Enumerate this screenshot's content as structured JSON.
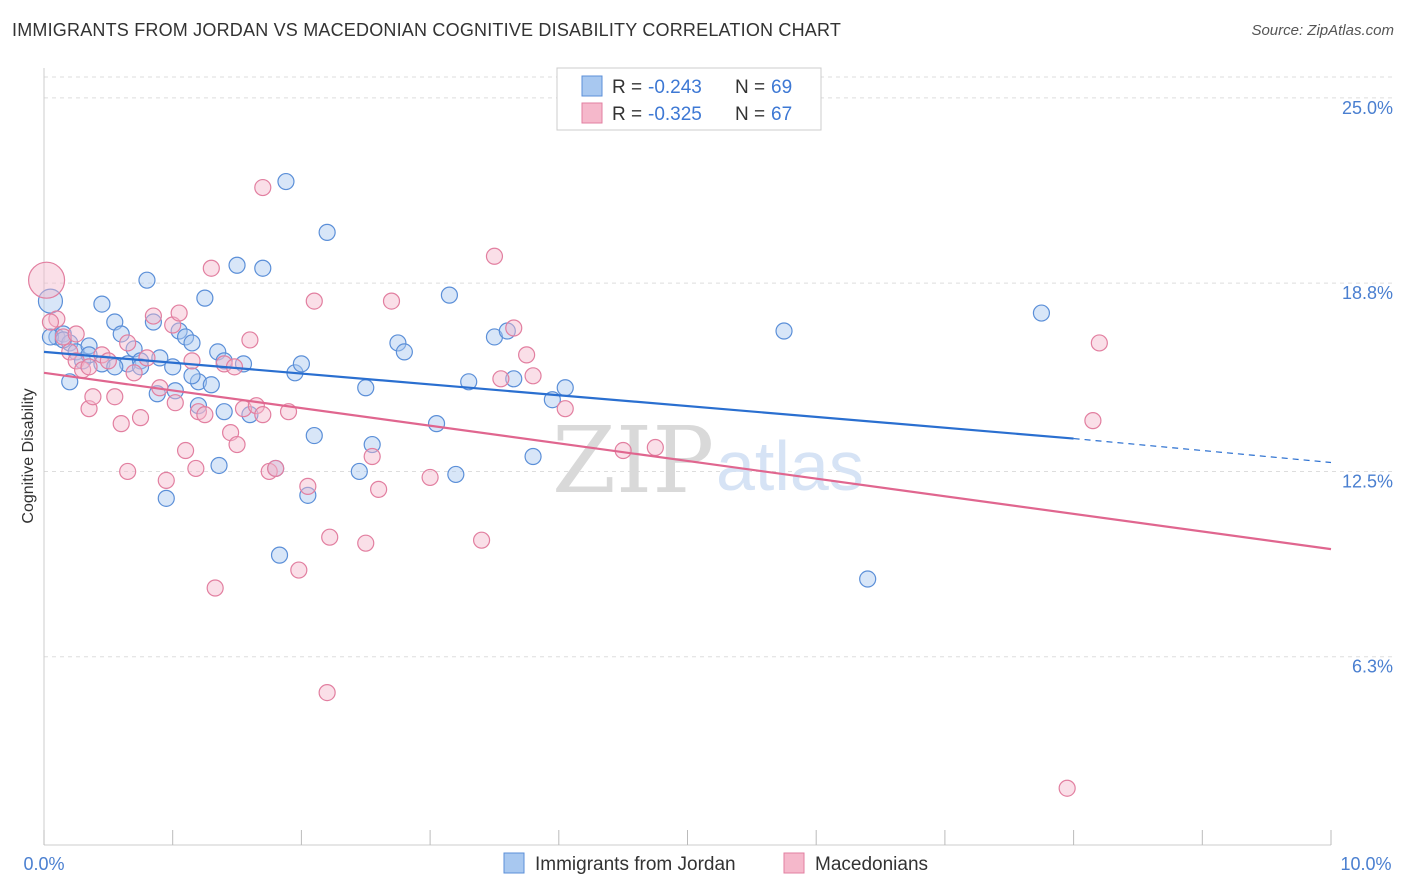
{
  "header": {
    "title": "IMMIGRANTS FROM JORDAN VS MACEDONIAN COGNITIVE DISABILITY CORRELATION CHART",
    "source": "Source: ZipAtlas.com"
  },
  "legend": {
    "rows": [
      {
        "r_label": "R =",
        "r_value": "-0.243",
        "n_label": "N =",
        "n_value": "69"
      },
      {
        "r_label": "R =",
        "r_value": "-0.325",
        "n_label": "N =",
        "n_value": "67"
      }
    ]
  },
  "bottom_legend": {
    "items": [
      {
        "label": "Immigrants from Jordan"
      },
      {
        "label": "Macedonians"
      }
    ]
  },
  "watermark": {
    "zip": "ZIP",
    "atlas": "atlas"
  },
  "colors": {
    "blue_fill": "#a8c8f0",
    "blue_stroke": "#5b8fd8",
    "blue_line": "#2a6fd0",
    "pink_fill": "#f5b8cb",
    "pink_stroke": "#e27fa0",
    "pink_line": "#e0668f",
    "grid": "#dddddd",
    "tick_text": "#4a7fd0"
  },
  "chart_data": {
    "type": "scatter",
    "title": "IMMIGRANTS FROM JORDAN VS MACEDONIAN COGNITIVE DISABILITY CORRELATION CHART",
    "xlabel": "",
    "ylabel": "Cognitive Disability",
    "xlim": [
      0.0,
      10.0
    ],
    "ylim": [
      0.0,
      26.0
    ],
    "x_tick_labels": [
      "0.0%",
      "10.0%"
    ],
    "y_ticks": [
      {
        "value": 6.3,
        "label": "6.3%"
      },
      {
        "value": 12.5,
        "label": "12.5%"
      },
      {
        "value": 18.8,
        "label": "18.8%"
      },
      {
        "value": 25.0,
        "label": "25.0%"
      }
    ],
    "grid": "horizontal dashed",
    "legend_position": "top-center",
    "series": [
      {
        "name": "Immigrants from Jordan",
        "color": "#5b8fd8",
        "R": -0.243,
        "N": 69,
        "trend": {
          "x0": 0.0,
          "y0": 16.5,
          "x1": 8.0,
          "y1": 13.6,
          "dashed_to_x": 10.0,
          "dashed_to_y": 12.8
        },
        "points": [
          [
            0.05,
            18.2
          ],
          [
            0.1,
            17.0
          ],
          [
            0.15,
            17.1
          ],
          [
            0.2,
            16.8
          ],
          [
            0.25,
            16.5
          ],
          [
            0.3,
            16.2
          ],
          [
            0.35,
            16.7
          ],
          [
            0.2,
            15.5
          ],
          [
            0.45,
            18.1
          ],
          [
            0.55,
            17.5
          ],
          [
            0.6,
            17.1
          ],
          [
            0.65,
            16.1
          ],
          [
            0.7,
            16.6
          ],
          [
            0.75,
            16.2
          ],
          [
            0.8,
            18.9
          ],
          [
            0.85,
            17.5
          ],
          [
            0.9,
            16.3
          ],
          [
            1.0,
            16.0
          ],
          [
            1.05,
            17.2
          ],
          [
            1.1,
            17.0
          ],
          [
            1.15,
            16.8
          ],
          [
            1.2,
            15.5
          ],
          [
            1.25,
            18.3
          ],
          [
            1.3,
            15.4
          ],
          [
            1.35,
            16.5
          ],
          [
            1.4,
            16.2
          ],
          [
            1.5,
            19.4
          ],
          [
            1.55,
            16.1
          ],
          [
            1.7,
            19.3
          ],
          [
            1.2,
            14.7
          ],
          [
            1.4,
            14.5
          ],
          [
            1.6,
            14.4
          ],
          [
            0.88,
            15.1
          ],
          [
            1.02,
            15.2
          ],
          [
            1.36,
            12.7
          ],
          [
            1.8,
            12.6
          ],
          [
            1.95,
            15.8
          ],
          [
            2.0,
            16.1
          ],
          [
            2.05,
            11.7
          ],
          [
            2.1,
            13.7
          ],
          [
            1.88,
            22.2
          ],
          [
            2.2,
            20.5
          ],
          [
            2.45,
            12.5
          ],
          [
            2.5,
            15.3
          ],
          [
            2.55,
            13.4
          ],
          [
            2.75,
            16.8
          ],
          [
            2.8,
            16.5
          ],
          [
            3.05,
            14.1
          ],
          [
            3.15,
            18.4
          ],
          [
            3.2,
            12.4
          ],
          [
            3.3,
            15.5
          ],
          [
            3.5,
            17.0
          ],
          [
            3.6,
            17.2
          ],
          [
            3.65,
            15.6
          ],
          [
            3.8,
            13.0
          ],
          [
            3.95,
            14.9
          ],
          [
            4.05,
            15.3
          ],
          [
            5.75,
            17.2
          ],
          [
            6.4,
            8.9
          ],
          [
            7.75,
            17.8
          ],
          [
            1.83,
            9.7
          ],
          [
            0.95,
            11.6
          ],
          [
            0.45,
            16.1
          ],
          [
            0.55,
            16.0
          ],
          [
            0.75,
            16.0
          ],
          [
            1.15,
            15.7
          ],
          [
            0.05,
            17.0
          ],
          [
            0.35,
            16.4
          ],
          [
            0.15,
            16.9
          ]
        ]
      },
      {
        "name": "Macedonians",
        "color": "#e27fa0",
        "R": -0.325,
        "N": 67,
        "trend": {
          "x0": 0.0,
          "y0": 15.8,
          "x1": 10.0,
          "y1": 9.9
        },
        "points": [
          [
            0.02,
            18.9
          ],
          [
            0.1,
            17.6
          ],
          [
            0.15,
            17.0
          ],
          [
            0.2,
            16.5
          ],
          [
            0.25,
            16.2
          ],
          [
            0.3,
            15.9
          ],
          [
            0.35,
            14.6
          ],
          [
            0.38,
            15.0
          ],
          [
            0.45,
            16.4
          ],
          [
            0.5,
            16.2
          ],
          [
            0.55,
            15.0
          ],
          [
            0.6,
            14.1
          ],
          [
            0.65,
            16.8
          ],
          [
            0.7,
            15.8
          ],
          [
            0.75,
            14.3
          ],
          [
            0.8,
            16.3
          ],
          [
            0.85,
            17.7
          ],
          [
            0.9,
            15.3
          ],
          [
            0.95,
            12.2
          ],
          [
            1.0,
            17.4
          ],
          [
            1.05,
            17.8
          ],
          [
            1.1,
            13.2
          ],
          [
            1.15,
            16.2
          ],
          [
            1.2,
            14.5
          ],
          [
            1.25,
            14.4
          ],
          [
            1.3,
            19.3
          ],
          [
            1.4,
            16.1
          ],
          [
            1.45,
            13.8
          ],
          [
            1.5,
            13.4
          ],
          [
            1.55,
            14.6
          ],
          [
            1.6,
            16.9
          ],
          [
            1.65,
            14.7
          ],
          [
            1.7,
            22.0
          ],
          [
            1.75,
            12.5
          ],
          [
            1.8,
            12.6
          ],
          [
            1.9,
            14.5
          ],
          [
            1.98,
            9.2
          ],
          [
            2.05,
            12.0
          ],
          [
            2.1,
            18.2
          ],
          [
            2.2,
            5.1
          ],
          [
            2.22,
            10.3
          ],
          [
            2.5,
            10.1
          ],
          [
            2.55,
            13.0
          ],
          [
            2.6,
            11.9
          ],
          [
            2.7,
            18.2
          ],
          [
            3.0,
            12.3
          ],
          [
            3.4,
            10.2
          ],
          [
            3.5,
            19.7
          ],
          [
            3.55,
            15.6
          ],
          [
            3.65,
            17.3
          ],
          [
            3.75,
            16.4
          ],
          [
            3.8,
            15.7
          ],
          [
            4.05,
            14.6
          ],
          [
            1.33,
            8.6
          ],
          [
            0.65,
            12.5
          ],
          [
            1.02,
            14.8
          ],
          [
            1.18,
            12.6
          ],
          [
            1.48,
            16.0
          ],
          [
            1.7,
            14.4
          ],
          [
            4.5,
            13.2
          ],
          [
            4.75,
            13.3
          ],
          [
            8.15,
            14.2
          ],
          [
            8.2,
            16.8
          ],
          [
            7.95,
            1.9
          ],
          [
            0.05,
            17.5
          ],
          [
            0.35,
            16.0
          ],
          [
            0.25,
            17.1
          ]
        ]
      }
    ]
  }
}
